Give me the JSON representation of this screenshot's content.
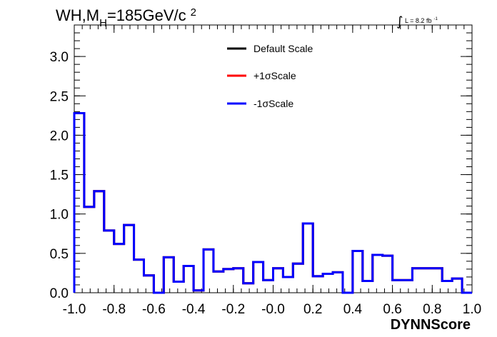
{
  "chart_data": {
    "type": "line",
    "title_main": "WH,M",
    "title_sub": "H",
    "title_rest": "=185GeV/c",
    "title_sup": "2",
    "lumi_text": "L = 8.2 fb",
    "lumi_sup": "-1",
    "xlabel": "DYNNScore",
    "xlim": [
      -1.0,
      1.0
    ],
    "ylim": [
      0.0,
      3.4
    ],
    "x_ticks": [
      "-1.0",
      "-0.8",
      "-0.6",
      "-0.4",
      "-0.2",
      "-0.0",
      "0.2",
      "0.4",
      "0.6",
      "0.8",
      "1.0"
    ],
    "y_ticks": [
      "0.0",
      "0.5",
      "1.0",
      "1.5",
      "2.0",
      "2.5",
      "3.0"
    ],
    "bin_edges": [
      -1.0,
      -0.95,
      -0.9,
      -0.85,
      -0.8,
      -0.75,
      -0.7,
      -0.65,
      -0.6,
      -0.55,
      -0.5,
      -0.45,
      -0.4,
      -0.35,
      -0.3,
      -0.25,
      -0.2,
      -0.15,
      -0.1,
      -0.05,
      0.0,
      0.05,
      0.1,
      0.15,
      0.2,
      0.25,
      0.3,
      0.35,
      0.4,
      0.45,
      0.5,
      0.55,
      0.6,
      0.65,
      0.7,
      0.75,
      0.8,
      0.85,
      0.9,
      0.95,
      1.0
    ],
    "series": [
      {
        "name": "Default Scale",
        "color": "#000000",
        "values": [
          2.28,
          1.09,
          1.29,
          0.79,
          0.62,
          0.86,
          0.42,
          0.22,
          0.0,
          0.45,
          0.14,
          0.34,
          0.03,
          0.55,
          0.27,
          0.3,
          0.31,
          0.12,
          0.39,
          0.16,
          0.31,
          0.2,
          0.37,
          0.88,
          0.21,
          0.24,
          0.26,
          0.0,
          0.53,
          0.15,
          0.48,
          0.47,
          0.16,
          0.16,
          0.31,
          0.31,
          0.31,
          0.15,
          0.18,
          0.0
        ]
      },
      {
        "name": "+1σScale",
        "color": "#ff0000",
        "values": [
          2.28,
          1.09,
          1.29,
          0.79,
          0.62,
          0.86,
          0.42,
          0.22,
          0.0,
          0.45,
          0.14,
          0.34,
          0.03,
          0.55,
          0.27,
          0.3,
          0.31,
          0.12,
          0.39,
          0.16,
          0.31,
          0.2,
          0.37,
          0.88,
          0.21,
          0.24,
          0.26,
          0.0,
          0.53,
          0.15,
          0.48,
          0.47,
          0.16,
          0.16,
          0.31,
          0.31,
          0.31,
          0.15,
          0.18,
          0.0
        ]
      },
      {
        "name": "-1σScale",
        "color": "#0000ff",
        "values": [
          2.28,
          1.09,
          1.29,
          0.79,
          0.62,
          0.86,
          0.42,
          0.22,
          0.0,
          0.45,
          0.14,
          0.34,
          0.03,
          0.55,
          0.27,
          0.3,
          0.31,
          0.12,
          0.39,
          0.16,
          0.31,
          0.2,
          0.37,
          0.88,
          0.21,
          0.24,
          0.26,
          0.0,
          0.53,
          0.15,
          0.48,
          0.47,
          0.16,
          0.16,
          0.31,
          0.31,
          0.31,
          0.15,
          0.18,
          0.0
        ]
      }
    ],
    "legend_placement": "top-center",
    "grid": false
  }
}
